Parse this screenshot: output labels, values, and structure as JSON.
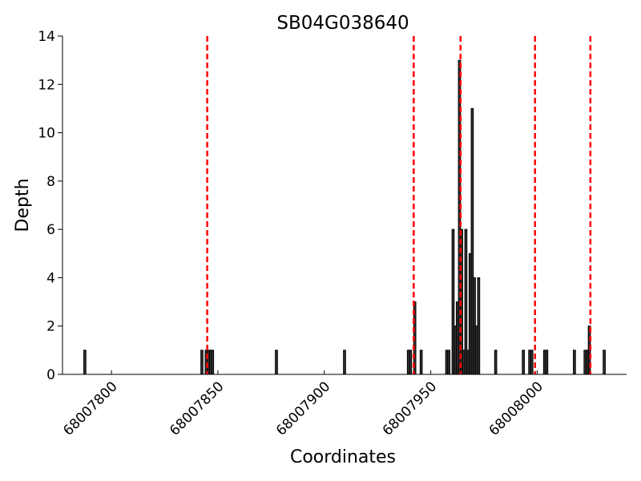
{
  "chart_data": {
    "type": "bar",
    "title": "SB04G038640",
    "xlabel": "Coordinates",
    "ylabel": "Depth",
    "x": [
      68007787,
      68007842,
      68007844,
      68007845,
      68007846,
      68007847,
      68007877,
      68007909,
      68007939,
      68007940,
      68007942,
      68007945,
      68007957,
      68007958,
      68007960,
      68007961,
      68007962,
      68007963,
      68007964,
      68007965,
      68007966,
      68007967,
      68007968,
      68007969,
      68007970,
      68007971,
      68007972,
      68007980,
      68007993,
      68007996,
      68007997,
      68008003,
      68008004,
      68008017,
      68008022,
      68008023,
      68008024,
      68008031
    ],
    "values": [
      1,
      1,
      1,
      1,
      1,
      1,
      1,
      1,
      1,
      1,
      3,
      1,
      1,
      1,
      6,
      2,
      3,
      13,
      6,
      1,
      6,
      1,
      5,
      11,
      4,
      2,
      4,
      1,
      1,
      1,
      1,
      1,
      1,
      1,
      1,
      1,
      2,
      1
    ],
    "color": "#333333",
    "vlines": [
      68007845,
      68007942,
      68007964,
      68007999,
      68008025
    ],
    "vline_color": "#ff0000",
    "xlim": [
      68007777,
      68008042
    ],
    "xticks": [
      68007800,
      68007850,
      68007900,
      68007950,
      68008000
    ],
    "ylim": [
      0,
      14
    ],
    "yticks": [
      0,
      2,
      4,
      6,
      8,
      10,
      12,
      14
    ]
  }
}
